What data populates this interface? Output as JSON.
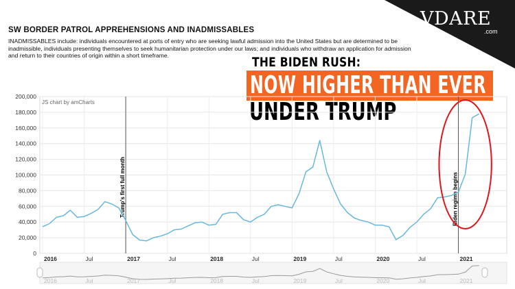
{
  "header": {
    "title": "SW BORDER PATROL APPREHENSIONS AND INADMISSABLES",
    "description": "INADMISSABLES include: individuals encountered at ports of entry who are seeking lawful admission into the United States but are determined to be inadmissible, individuals presenting themselves to seek humanitarian protection under our laws; and individuals who withdraw an application for admission and return to their countries of origin within a short timeframe."
  },
  "brand": {
    "logo": "VDARE",
    "domain": ".com"
  },
  "headline": {
    "line1": "THE BIDEN RUSH:",
    "line2": "NOW HIGHER THAN EVER",
    "line3": "UNDER TRUMP"
  },
  "colors": {
    "line": "#67b7dc",
    "highlight_box": "#f26522",
    "circle": "#e0141b",
    "corner": "#1a1a1a"
  },
  "chart_data": {
    "type": "line",
    "title": "SW BORDER PATROL APPREHENSIONS AND INADMISSABLES",
    "credit": "JS chart by amCharts",
    "xlabel": "",
    "ylabel": "",
    "ylim": [
      0,
      200000
    ],
    "yticks": [
      "0",
      "20,000",
      "40,000",
      "60,000",
      "80,000",
      "100,000",
      "120,000",
      "140,000",
      "160,000",
      "180,000",
      "200,000"
    ],
    "ytick_values": [
      0,
      20000,
      40000,
      60000,
      80000,
      100000,
      120000,
      140000,
      160000,
      180000,
      200000
    ],
    "xlim": [
      "2016-01",
      "2021-06"
    ],
    "xticks": [
      {
        "label": "2016",
        "date": "2016-01",
        "bold": true
      },
      {
        "label": "Jul",
        "date": "2016-07",
        "bold": false
      },
      {
        "label": "2017",
        "date": "2017-01",
        "bold": true
      },
      {
        "label": "Jul",
        "date": "2017-07",
        "bold": false
      },
      {
        "label": "2018",
        "date": "2018-01",
        "bold": true
      },
      {
        "label": "Jul",
        "date": "2018-07",
        "bold": false
      },
      {
        "label": "2019",
        "date": "2019-01",
        "bold": true
      },
      {
        "label": "Jul",
        "date": "2019-07",
        "bold": false
      },
      {
        "label": "2020",
        "date": "2020-01",
        "bold": true
      },
      {
        "label": "Jul",
        "date": "2020-07",
        "bold": false
      },
      {
        "label": "2021",
        "date": "2021-01",
        "bold": true
      }
    ],
    "grid": true,
    "legend": "none",
    "annotations": [
      {
        "label": "Trump's first full month",
        "date": "2017-01"
      },
      {
        "label": "Biden regime begins",
        "date": "2021-01"
      }
    ],
    "highlight": {
      "type": "ellipse",
      "from": "2020-12",
      "to": "2021-04"
    },
    "series": [
      {
        "x": [
          "2016-01",
          "2016-02",
          "2016-03",
          "2016-04",
          "2016-05",
          "2016-06",
          "2016-07",
          "2016-08",
          "2016-09",
          "2016-10",
          "2016-11",
          "2016-12",
          "2017-01",
          "2017-02",
          "2017-03",
          "2017-04",
          "2017-05",
          "2017-06",
          "2017-07",
          "2017-08",
          "2017-09",
          "2017-10",
          "2017-11",
          "2017-12",
          "2018-01",
          "2018-02",
          "2018-03",
          "2018-04",
          "2018-05",
          "2018-06",
          "2018-07",
          "2018-08",
          "2018-09",
          "2018-10",
          "2018-11",
          "2018-12",
          "2019-01",
          "2019-02",
          "2019-03",
          "2019-04",
          "2019-05",
          "2019-06",
          "2019-07",
          "2019-08",
          "2019-09",
          "2019-10",
          "2019-11",
          "2019-12",
          "2020-01",
          "2020-02",
          "2020-03",
          "2020-04",
          "2020-05",
          "2020-06",
          "2020-07",
          "2020-08",
          "2020-09",
          "2020-10",
          "2020-11",
          "2020-12",
          "2021-01",
          "2021-02",
          "2021-03",
          "2021-04"
        ],
        "values": [
          34000,
          38000,
          46000,
          48000,
          55000,
          46000,
          47000,
          51000,
          56000,
          66000,
          63000,
          58000,
          42000,
          24000,
          17000,
          16000,
          20000,
          22000,
          25000,
          30000,
          31000,
          35000,
          39000,
          40000,
          36000,
          37000,
          50000,
          52000,
          52000,
          43000,
          40000,
          46000,
          50000,
          60000,
          62000,
          60000,
          58000,
          76000,
          104000,
          110000,
          144000,
          104000,
          82000,
          63000,
          52000,
          45000,
          42000,
          40000,
          36000,
          36000,
          34000,
          17500,
          23000,
          33000,
          40000,
          50000,
          57000,
          71000,
          72000,
          74000,
          78000,
          101000,
          173000,
          178000
        ]
      }
    ],
    "navigator": {
      "labels": [
        "2016",
        "Jul",
        "2017",
        "Jul",
        "2018",
        "Jul",
        "2019",
        "Jul",
        "2020",
        "Jul",
        "2021"
      ]
    }
  }
}
